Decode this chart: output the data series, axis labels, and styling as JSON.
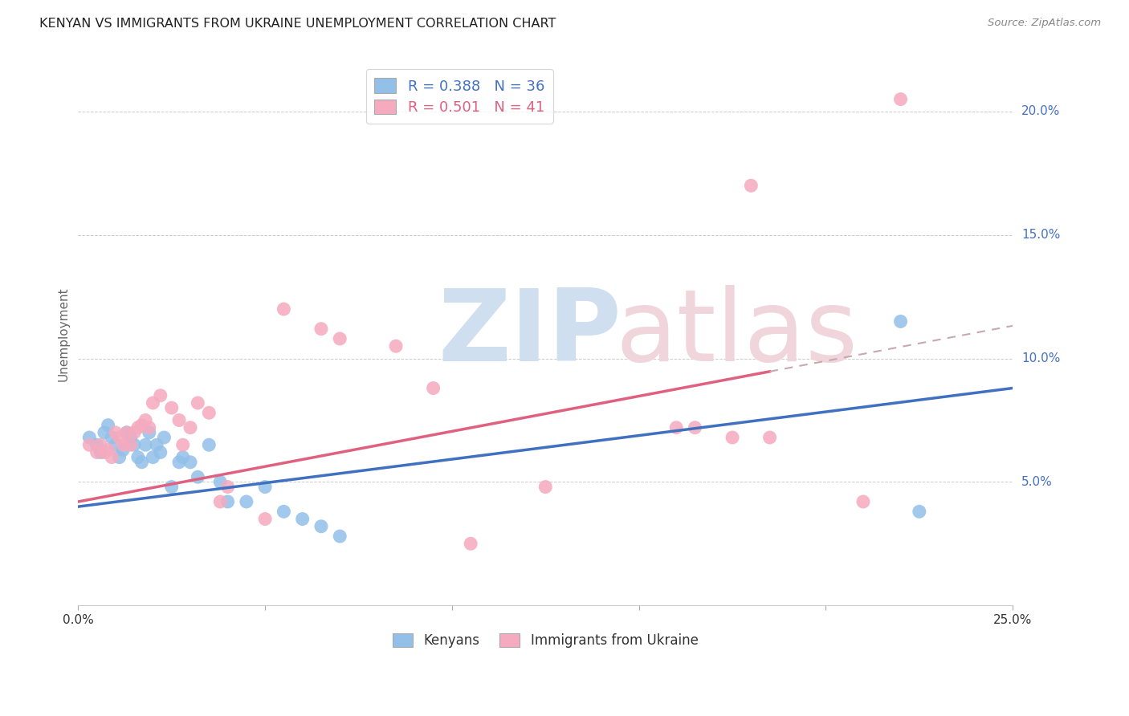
{
  "title": "KENYAN VS IMMIGRANTS FROM UKRAINE UNEMPLOYMENT CORRELATION CHART",
  "source": "Source: ZipAtlas.com",
  "ylabel": "Unemployment",
  "blue_R": "0.388",
  "blue_N": "36",
  "pink_R": "0.501",
  "pink_N": "41",
  "blue_dot_color": "#92C0E8",
  "pink_dot_color": "#F5AABF",
  "blue_line_color": "#4070C0",
  "pink_line_color": "#E06080",
  "dash_line_color": "#C8A8B0",
  "legend_R_color": "#4472C4",
  "x_min": 0.0,
  "x_max": 0.25,
  "y_min": 0.0,
  "y_max": 0.22,
  "blue_intercept": 0.04,
  "blue_slope": 0.192,
  "pink_intercept": 0.042,
  "pink_slope": 0.285,
  "pink_line_x_end": 0.185,
  "dash_line_x_start": 0.185,
  "dash_line_x_end": 0.25,
  "blue_scatter_x": [
    0.003,
    0.005,
    0.006,
    0.007,
    0.008,
    0.009,
    0.01,
    0.011,
    0.012,
    0.013,
    0.014,
    0.015,
    0.016,
    0.017,
    0.018,
    0.019,
    0.02,
    0.021,
    0.022,
    0.023,
    0.025,
    0.027,
    0.028,
    0.03,
    0.032,
    0.035,
    0.038,
    0.04,
    0.045,
    0.05,
    0.055,
    0.06,
    0.065,
    0.07,
    0.22,
    0.225
  ],
  "blue_scatter_y": [
    0.068,
    0.065,
    0.062,
    0.07,
    0.073,
    0.068,
    0.065,
    0.06,
    0.063,
    0.07,
    0.068,
    0.065,
    0.06,
    0.058,
    0.065,
    0.07,
    0.06,
    0.065,
    0.062,
    0.068,
    0.048,
    0.058,
    0.06,
    0.058,
    0.052,
    0.065,
    0.05,
    0.042,
    0.042,
    0.048,
    0.038,
    0.035,
    0.032,
    0.028,
    0.115,
    0.038
  ],
  "pink_scatter_x": [
    0.003,
    0.005,
    0.006,
    0.007,
    0.008,
    0.009,
    0.01,
    0.011,
    0.012,
    0.013,
    0.014,
    0.015,
    0.016,
    0.017,
    0.018,
    0.019,
    0.02,
    0.022,
    0.025,
    0.027,
    0.028,
    0.03,
    0.032,
    0.035,
    0.038,
    0.04,
    0.05,
    0.055,
    0.065,
    0.07,
    0.085,
    0.095,
    0.105,
    0.125,
    0.16,
    0.165,
    0.175,
    0.18,
    0.185,
    0.21,
    0.22
  ],
  "pink_scatter_y": [
    0.065,
    0.062,
    0.065,
    0.062,
    0.063,
    0.06,
    0.07,
    0.068,
    0.065,
    0.07,
    0.065,
    0.07,
    0.072,
    0.073,
    0.075,
    0.072,
    0.082,
    0.085,
    0.08,
    0.075,
    0.065,
    0.072,
    0.082,
    0.078,
    0.042,
    0.048,
    0.035,
    0.12,
    0.112,
    0.108,
    0.105,
    0.088,
    0.025,
    0.048,
    0.072,
    0.072,
    0.068,
    0.17,
    0.068,
    0.042,
    0.205
  ],
  "yticks": [
    0.05,
    0.1,
    0.15,
    0.2
  ],
  "ytick_labels": [
    "5.0%",
    "10.0%",
    "15.0%",
    "20.0%"
  ],
  "xticks": [
    0.0,
    0.05,
    0.1,
    0.15,
    0.2,
    0.25
  ],
  "xtick_labels": [
    "0.0%",
    "",
    "",
    "",
    "",
    "25.0%"
  ],
  "background_color": "#FFFFFF",
  "grid_color": "#CCCCCC",
  "watermark_zip_color": "#D0DFF0",
  "watermark_atlas_color": "#F0D5DC"
}
